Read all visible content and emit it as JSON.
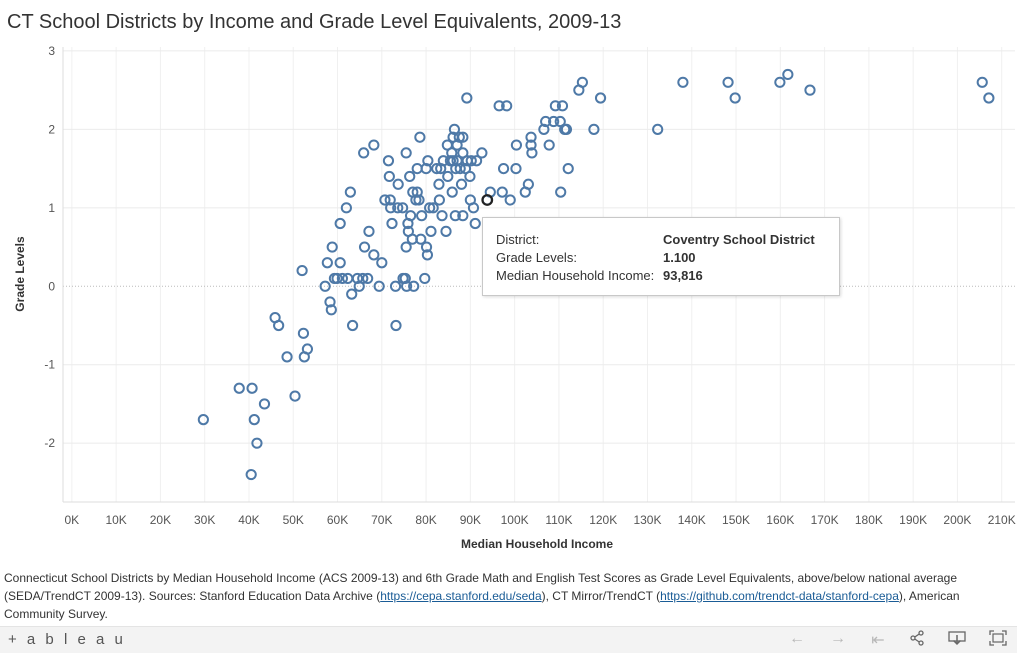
{
  "title": "CT School Districts by Income and Grade Level Equivalents, 2009-13",
  "chart_data": {
    "type": "scatter",
    "title": "CT School Districts by Income and Grade Level Equivalents, 2009-13",
    "xlabel": "Median Household Income",
    "ylabel": "Grade Levels",
    "xlim": [
      -2000,
      213000
    ],
    "ylim": [
      -2.75,
      3.05
    ],
    "x_ticks": [
      0,
      10000,
      20000,
      30000,
      40000,
      50000,
      60000,
      70000,
      80000,
      90000,
      100000,
      110000,
      120000,
      130000,
      140000,
      150000,
      160000,
      170000,
      180000,
      190000,
      200000,
      210000
    ],
    "x_tick_labels": [
      "0K",
      "10K",
      "20K",
      "30K",
      "40K",
      "50K",
      "60K",
      "70K",
      "80K",
      "90K",
      "100K",
      "110K",
      "120K",
      "130K",
      "140K",
      "150K",
      "160K",
      "170K",
      "180K",
      "190K",
      "200K",
      "210K"
    ],
    "y_ticks": [
      -2,
      -1,
      0,
      1,
      2,
      3
    ],
    "y_tick_labels": [
      "-2",
      "-1",
      "0",
      "1",
      "2",
      "3"
    ],
    "grid": true,
    "marker_color": "#4e79a7",
    "highlight_color": "#222222",
    "points": [
      [
        29700,
        -1.7
      ],
      [
        37800,
        -1.3
      ],
      [
        40700,
        -1.3
      ],
      [
        40500,
        -2.4
      ],
      [
        41200,
        -1.7
      ],
      [
        41800,
        -2.0
      ],
      [
        43500,
        -1.5
      ],
      [
        45900,
        -0.4
      ],
      [
        46700,
        -0.5
      ],
      [
        48600,
        -0.9
      ],
      [
        50400,
        -1.4
      ],
      [
        52000,
        0.2
      ],
      [
        52300,
        -0.6
      ],
      [
        52500,
        -0.9
      ],
      [
        53200,
        -0.8
      ],
      [
        57200,
        0.0
      ],
      [
        57700,
        0.3
      ],
      [
        58300,
        -0.2
      ],
      [
        58600,
        -0.3
      ],
      [
        58800,
        0.5
      ],
      [
        59300,
        0.1
      ],
      [
        59900,
        0.1
      ],
      [
        60600,
        0.3
      ],
      [
        60600,
        0.8
      ],
      [
        61100,
        0.1
      ],
      [
        62000,
        1.0
      ],
      [
        62300,
        0.1
      ],
      [
        62900,
        1.2
      ],
      [
        63200,
        -0.1
      ],
      [
        63400,
        -0.5
      ],
      [
        64500,
        0.1
      ],
      [
        64900,
        0.0
      ],
      [
        65700,
        0.1
      ],
      [
        65900,
        1.7
      ],
      [
        66100,
        0.5
      ],
      [
        66800,
        0.1
      ],
      [
        67100,
        0.7
      ],
      [
        68200,
        1.8
      ],
      [
        68200,
        0.4
      ],
      [
        69400,
        0.0
      ],
      [
        70000,
        0.3
      ],
      [
        70700,
        1.1
      ],
      [
        71500,
        1.6
      ],
      [
        71700,
        1.4
      ],
      [
        71900,
        1.1
      ],
      [
        72000,
        1.0
      ],
      [
        72300,
        0.8
      ],
      [
        73100,
        0.0
      ],
      [
        73200,
        -0.5
      ],
      [
        73600,
        1.0
      ],
      [
        73700,
        1.3
      ],
      [
        74700,
        1.0
      ],
      [
        74800,
        0.1
      ],
      [
        75300,
        0.1
      ],
      [
        75500,
        1.7
      ],
      [
        75500,
        0.5
      ],
      [
        75600,
        0.0
      ],
      [
        75900,
        0.8
      ],
      [
        76000,
        0.7
      ],
      [
        76300,
        1.4
      ],
      [
        76500,
        0.9
      ],
      [
        76900,
        0.6
      ],
      [
        77000,
        1.2
      ],
      [
        77200,
        0.0
      ],
      [
        77700,
        1.1
      ],
      [
        78000,
        1.5
      ],
      [
        78000,
        1.2
      ],
      [
        78400,
        1.1
      ],
      [
        78600,
        1.9
      ],
      [
        78800,
        0.6
      ],
      [
        79000,
        0.9
      ],
      [
        79700,
        0.1
      ],
      [
        80000,
        1.5
      ],
      [
        80100,
        0.5
      ],
      [
        80300,
        0.4
      ],
      [
        80400,
        1.6
      ],
      [
        80800,
        1.0
      ],
      [
        81100,
        0.7
      ],
      [
        81600,
        1.0
      ],
      [
        82400,
        1.5
      ],
      [
        82900,
        1.3
      ],
      [
        83000,
        1.1
      ],
      [
        83300,
        1.5
      ],
      [
        83600,
        0.9
      ],
      [
        83900,
        1.6
      ],
      [
        84500,
        0.7
      ],
      [
        84800,
        1.8
      ],
      [
        84900,
        1.4
      ],
      [
        85500,
        1.6
      ],
      [
        85800,
        1.7
      ],
      [
        85900,
        1.2
      ],
      [
        86100,
        1.9
      ],
      [
        86100,
        1.6
      ],
      [
        86400,
        2.0
      ],
      [
        86600,
        0.9
      ],
      [
        86700,
        1.5
      ],
      [
        87000,
        1.8
      ],
      [
        87000,
        1.6
      ],
      [
        87500,
        1.9
      ],
      [
        87700,
        1.5
      ],
      [
        88000,
        1.3
      ],
      [
        88300,
        0.9
      ],
      [
        88300,
        1.9
      ],
      [
        88300,
        1.7
      ],
      [
        88900,
        1.5
      ],
      [
        89200,
        2.4
      ],
      [
        89300,
        1.6
      ],
      [
        89900,
        1.4
      ],
      [
        90000,
        1.1
      ],
      [
        90200,
        1.6
      ],
      [
        90700,
        1.0
      ],
      [
        91100,
        0.8
      ],
      [
        91400,
        1.6
      ],
      [
        92600,
        1.7
      ],
      [
        93816,
        1.1
      ],
      [
        94500,
        1.2
      ],
      [
        96500,
        2.3
      ],
      [
        97200,
        1.2
      ],
      [
        97500,
        1.5
      ],
      [
        98200,
        2.3
      ],
      [
        99000,
        1.1
      ],
      [
        100300,
        1.5
      ],
      [
        100400,
        1.8
      ],
      [
        102400,
        1.2
      ],
      [
        103100,
        1.3
      ],
      [
        103700,
        1.9
      ],
      [
        103700,
        1.8
      ],
      [
        103900,
        1.7
      ],
      [
        106600,
        2.0
      ],
      [
        107000,
        2.1
      ],
      [
        107800,
        1.8
      ],
      [
        108800,
        2.1
      ],
      [
        109200,
        2.3
      ],
      [
        110300,
        2.1
      ],
      [
        110400,
        1.2
      ],
      [
        110800,
        2.3
      ],
      [
        111300,
        2.0
      ],
      [
        111700,
        2.0
      ],
      [
        112100,
        1.5
      ],
      [
        114500,
        2.5
      ],
      [
        115300,
        2.6
      ],
      [
        117900,
        2.0
      ],
      [
        119400,
        2.4
      ],
      [
        132300,
        2.0
      ],
      [
        138000,
        2.6
      ],
      [
        148200,
        2.6
      ],
      [
        149800,
        2.4
      ],
      [
        159900,
        2.6
      ],
      [
        161700,
        2.7
      ],
      [
        166700,
        2.5
      ],
      [
        205600,
        2.6
      ],
      [
        207100,
        2.4
      ]
    ],
    "highlighted_point": [
      93816,
      1.1
    ]
  },
  "tooltip": {
    "district_label": "District:",
    "district_value": "Coventry School District",
    "grade_label": "Grade Levels:",
    "grade_value": "1.100",
    "income_label": "Median Household Income:",
    "income_value": "93,816"
  },
  "caption": {
    "text1": "Connecticut School Districts by Median Household Income (ACS 2009-13) and 6th Grade Math and English Test Scores as Grade Level Equivalents, above/below national average (SEDA/TrendCT 2009-13). Sources: Stanford Education Data Archive (",
    "link1": "https://cepa.stanford.edu/seda",
    "text2": "), CT Mirror/TrendCT (",
    "link2": "https://github.com/trendct-data/stanford-cepa",
    "text3": "), American Community Survey."
  },
  "footer": {
    "logo": "+ a b l e a u",
    "icons": [
      "undo-icon",
      "redo-icon",
      "revert-icon",
      "share-icon",
      "download-icon",
      "fullscreen-icon"
    ]
  }
}
